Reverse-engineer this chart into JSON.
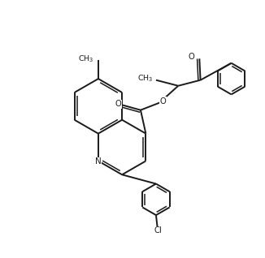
{
  "background_color": "#ffffff",
  "line_color": "#1a1a1a",
  "line_width": 1.4,
  "figsize": [
    3.26,
    3.18
  ],
  "dpi": 100,
  "xlim": [
    0,
    10
  ],
  "ylim": [
    0,
    9.8
  ]
}
